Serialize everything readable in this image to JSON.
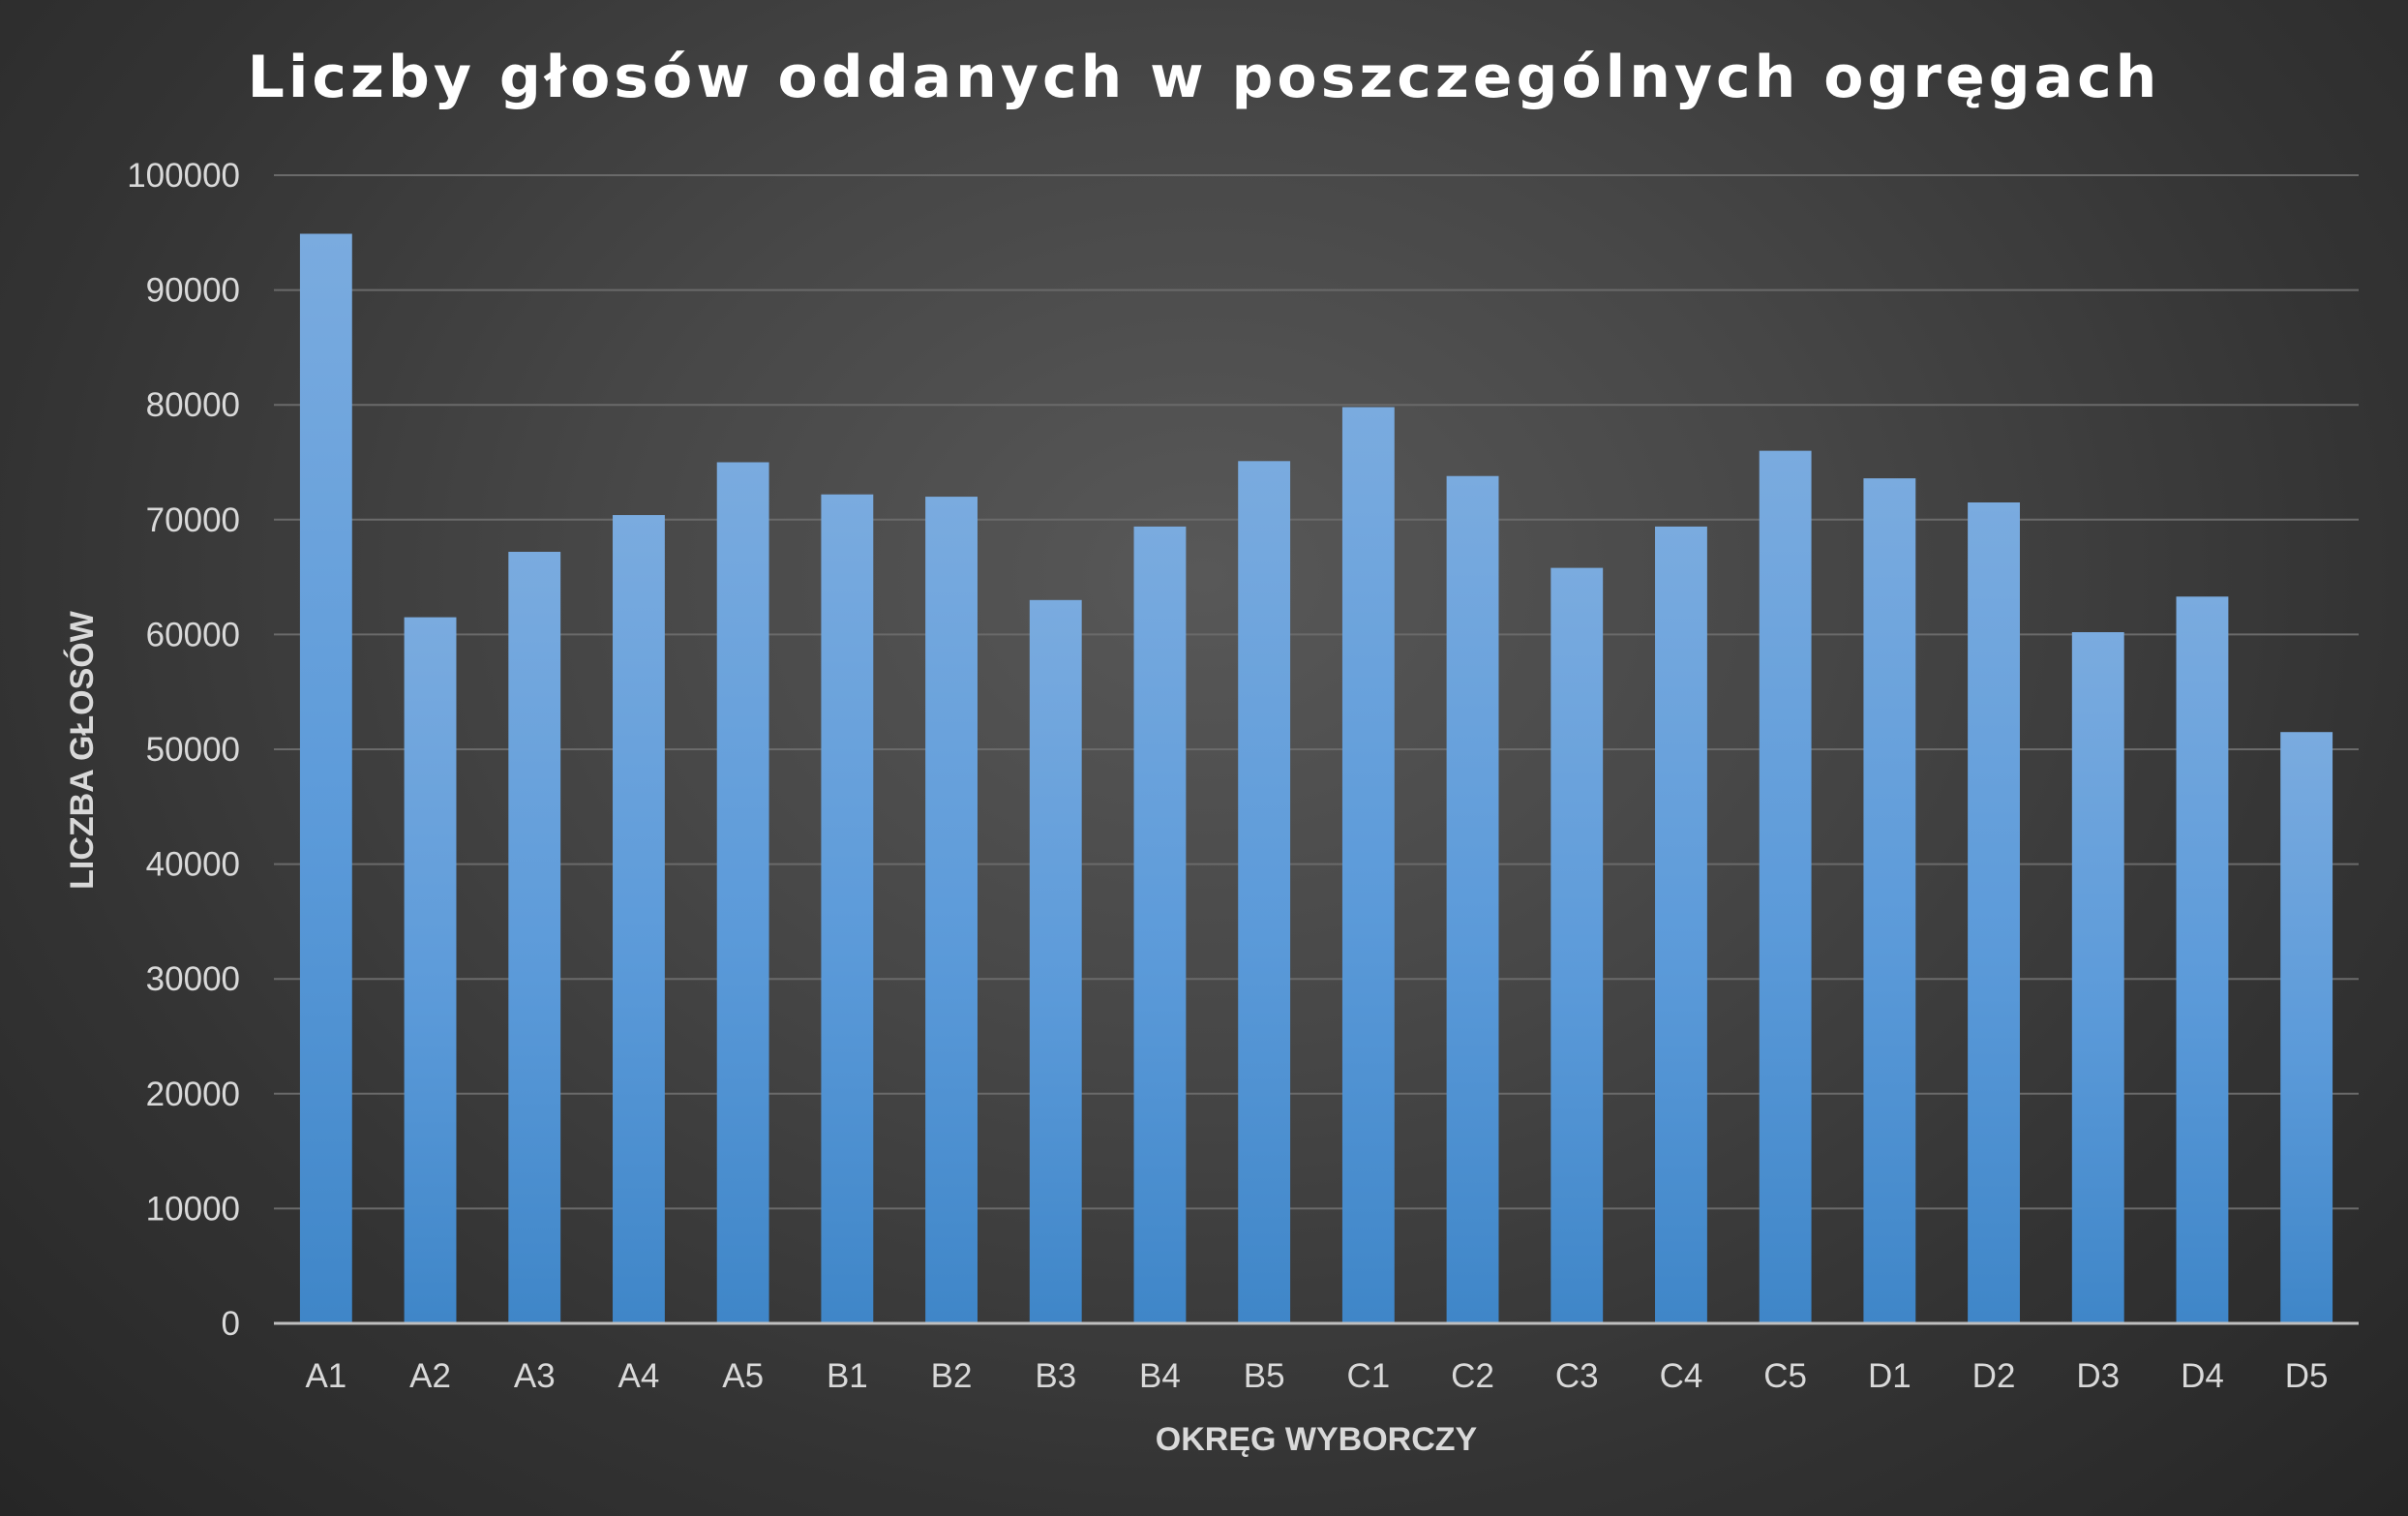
{
  "chart_data": {
    "type": "bar",
    "title": "Liczby głosów oddanych w poszczególnych ogręgach",
    "xlabel": "OKRĘG WYBORCZY",
    "ylabel": "LICZBA GŁOSÓW",
    "categories": [
      "A1",
      "A2",
      "A3",
      "A4",
      "A5",
      "B1",
      "B2",
      "B3",
      "B4",
      "B5",
      "C1",
      "C2",
      "C3",
      "C4",
      "C5",
      "D1",
      "D2",
      "D3",
      "D4",
      "D5"
    ],
    "values": [
      94900,
      61500,
      67200,
      70400,
      75000,
      72200,
      72000,
      63000,
      69400,
      75100,
      79800,
      73800,
      65800,
      69400,
      76000,
      73600,
      71500,
      60200,
      63300,
      51500
    ],
    "ylim": [
      0,
      100000
    ],
    "yticks": [
      "0",
      "10000",
      "20000",
      "30000",
      "40000",
      "50000",
      "60000",
      "70000",
      "80000",
      "90000",
      "100000"
    ],
    "grid": true,
    "legend": "none",
    "colors": {
      "bar_top": "#7aabdf",
      "bar_bottom": "#3f86c8"
    }
  }
}
